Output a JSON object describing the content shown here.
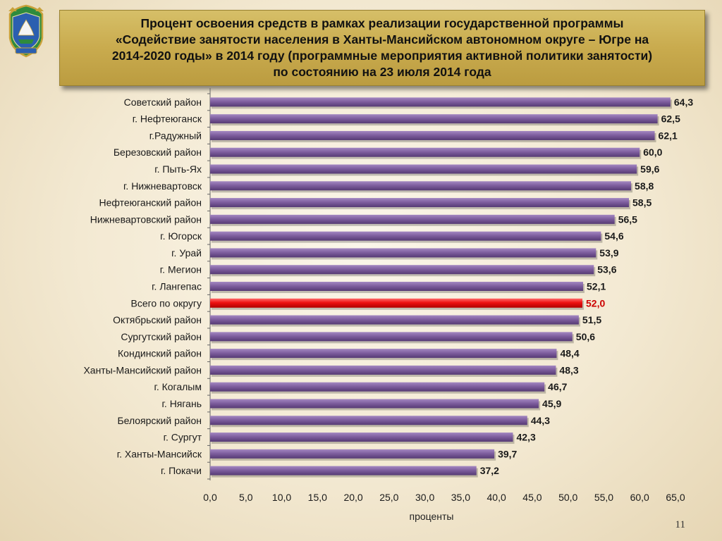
{
  "title": {
    "lines": [
      "Процент освоения средств в рамках реализации государственной  программы",
      "«Содействие занятости населения  в Ханты-Мансийском автономном округе – Югре на",
      "2014-2020 годы» в 2014 году (программные мероприятия активной политики занятости)",
      "по состоянию на 23 июля 2014 года"
    ]
  },
  "page_number": "11",
  "colors": {
    "bar": "#7f5f9f",
    "bar_highlight": "#ee1111",
    "label_highlight": "#cc0000",
    "title_background": "#cdb259"
  },
  "chart_data": {
    "type": "bar",
    "orientation": "horizontal",
    "categories": [
      "Советский район",
      "г. Нефтеюганск",
      "г.Радужный",
      "Березовский район",
      "г. Пыть-Ях",
      "г. Нижневартовск",
      "Нефтеюганский район",
      "Нижневартовский район",
      "г. Югорск",
      "г. Урай",
      "г. Мегион",
      "г. Лангепас",
      "Всего по округу",
      "Октябрьский район",
      "Сургутский район",
      "Кондинский район",
      "Ханты-Мансийский район",
      "г. Когалым",
      "г. Нягань",
      "Белоярский  район",
      "г. Сургут",
      "г. Ханты-Мансийск",
      "г. Покачи"
    ],
    "values": [
      64.3,
      62.5,
      62.1,
      60.0,
      59.6,
      58.8,
      58.5,
      56.5,
      54.6,
      53.9,
      53.6,
      52.1,
      52.0,
      51.5,
      50.6,
      48.4,
      48.3,
      46.7,
      45.9,
      44.3,
      42.3,
      39.7,
      37.2
    ],
    "value_labels": [
      "64,3",
      "62,5",
      "62,1",
      "60,0",
      "59,6",
      "58,8",
      "58,5",
      "56,5",
      "54,6",
      "53,9",
      "53,6",
      "52,1",
      "52,0",
      "51,5",
      "50,6",
      "48,4",
      "48,3",
      "46,7",
      "45,9",
      "44,3",
      "42,3",
      "39,7",
      "37,2"
    ],
    "highlight": "Всего по округу",
    "xlabel": "проценты",
    "xlim": [
      0,
      65
    ],
    "x_ticks": [
      "0,0",
      "5,0",
      "10,0",
      "15,0",
      "20,0",
      "25,0",
      "30,0",
      "35,0",
      "40,0",
      "45,0",
      "50,0",
      "55,0",
      "60,0",
      "65,0"
    ],
    "grid": false,
    "legend": "none"
  }
}
